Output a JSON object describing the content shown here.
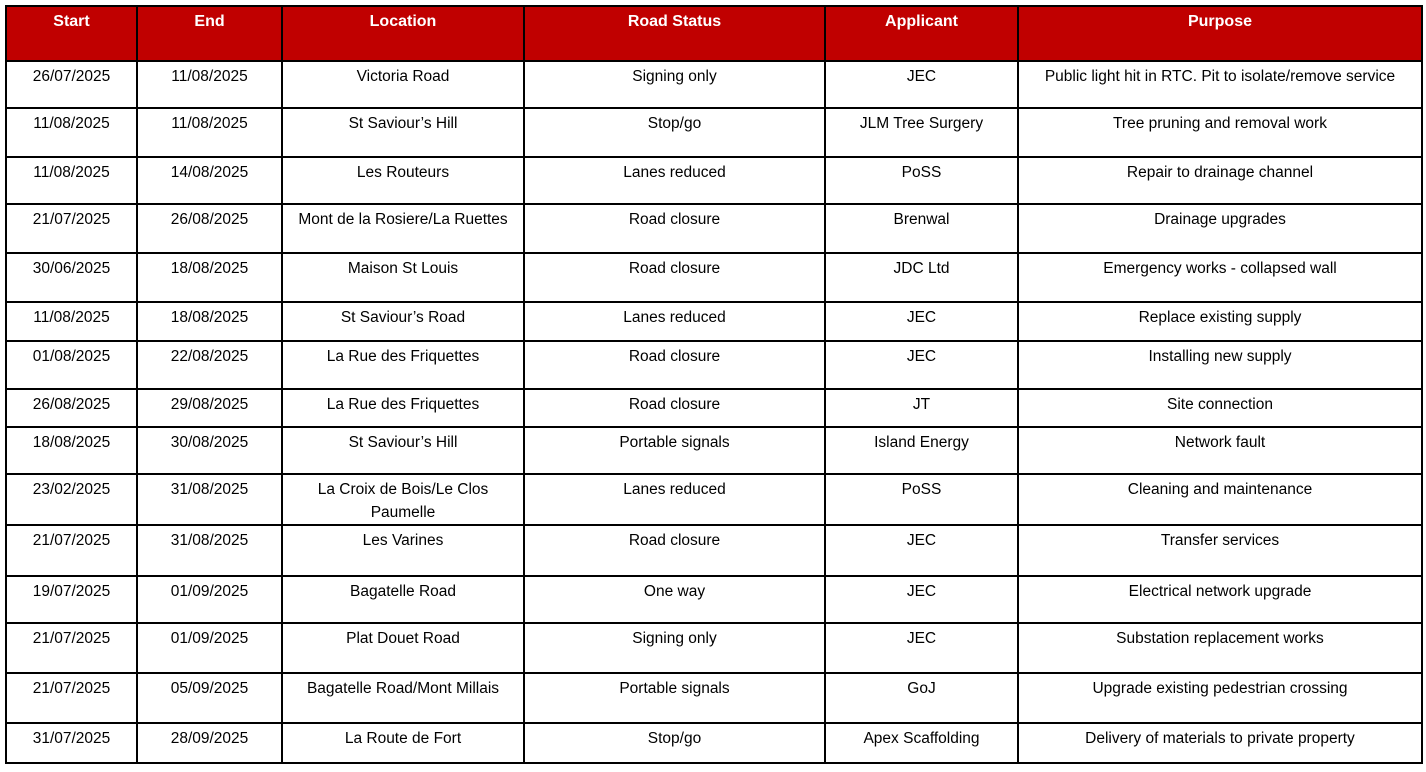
{
  "colors": {
    "header_bg": "#C00000",
    "header_text": "#FFFFFF",
    "border": "#000000",
    "body_text": "#000000"
  },
  "table": {
    "columns": [
      "Start",
      "End",
      "Location",
      "Road Status",
      "Applicant",
      "Purpose"
    ],
    "rows": [
      [
        "26/07/2025",
        "11/08/2025",
        "Victoria Road",
        "Signing only",
        "JEC",
        "Public light hit in RTC. Pit to isolate/remove service"
      ],
      [
        "11/08/2025",
        "11/08/2025",
        "St Saviour’s Hill",
        "Stop/go",
        "JLM Tree Surgery",
        "Tree pruning and removal work"
      ],
      [
        "11/08/2025",
        "14/08/2025",
        "Les Routeurs",
        "Lanes reduced",
        "PoSS",
        "Repair to drainage channel"
      ],
      [
        "21/07/2025",
        "26/08/2025",
        "Mont de la Rosiere/La Ruettes",
        "Road closure",
        "Brenwal",
        "Drainage upgrades"
      ],
      [
        "30/06/2025",
        "18/08/2025",
        "Maison St Louis",
        "Road closure",
        "JDC Ltd",
        "Emergency works - collapsed wall"
      ],
      [
        "11/08/2025",
        "18/08/2025",
        "St Saviour’s Road",
        "Lanes reduced",
        "JEC",
        "Replace existing supply"
      ],
      [
        "01/08/2025",
        "22/08/2025",
        "La Rue des Friquettes",
        "Road closure",
        "JEC",
        "Installing new supply"
      ],
      [
        "26/08/2025",
        "29/08/2025",
        "La Rue des Friquettes",
        "Road closure",
        "JT",
        "Site connection"
      ],
      [
        "18/08/2025",
        "30/08/2025",
        "St Saviour’s Hill",
        "Portable signals",
        "Island Energy",
        "Network fault"
      ],
      [
        "23/02/2025",
        "31/08/2025",
        "La Croix de Bois/Le Clos Paumelle",
        "Lanes reduced",
        "PoSS",
        "Cleaning and maintenance"
      ],
      [
        "21/07/2025",
        "31/08/2025",
        "Les Varines",
        "Road closure",
        "JEC",
        "Transfer services"
      ],
      [
        "19/07/2025",
        "01/09/2025",
        "Bagatelle Road",
        "One way",
        "JEC",
        "Electrical network upgrade"
      ],
      [
        "21/07/2025",
        "01/09/2025",
        "Plat Douet Road",
        "Signing only",
        "JEC",
        "Substation replacement works"
      ],
      [
        "21/07/2025",
        "05/09/2025",
        "Bagatelle Road/Mont Millais",
        "Portable signals",
        "GoJ",
        "Upgrade existing pedestrian crossing"
      ],
      [
        "31/07/2025",
        "28/09/2025",
        "La Route de Fort",
        "Stop/go",
        "Apex Scaffolding",
        "Delivery of materials to private property"
      ]
    ]
  }
}
